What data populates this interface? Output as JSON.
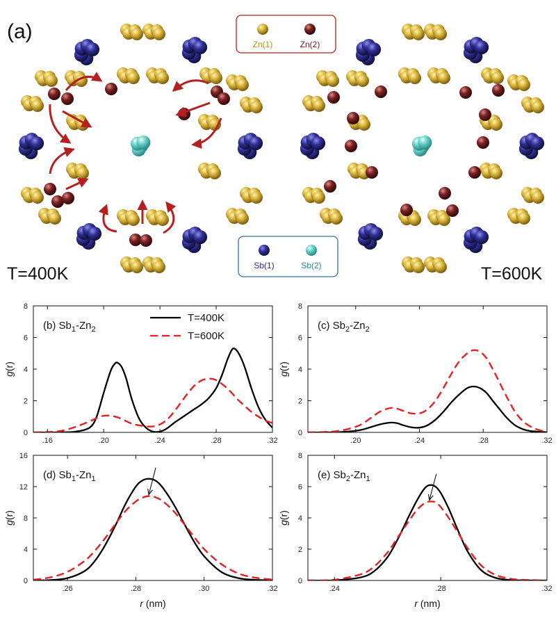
{
  "figure": {
    "panel_a_label": "(a)",
    "temp_left": "T=400K",
    "temp_right": "T=600K",
    "legend_zn": [
      {
        "label": "Zn(1)",
        "color": "#c9a72c"
      },
      {
        "label": "Zn(2)",
        "color": "#6b1a1a"
      }
    ],
    "legend_sb": [
      {
        "label": "Sb(1)",
        "color": "#2a2a8c"
      },
      {
        "label": "Sb(2)",
        "color": "#5fd0c8"
      }
    ],
    "arrow_color": "#b51f1f",
    "x_axis_label": {
      "italic": "r",
      "unit": " (nm)"
    },
    "y_axis_label": {
      "italic": "g",
      "rest": "(r)"
    }
  },
  "chart_data": [
    {
      "type": "line",
      "panel": "b",
      "title": {
        "label": "(b)",
        "sp1": "Sb",
        "sub1": "1",
        "dash": "-Zn",
        "sub2": "2"
      },
      "xlabel": "",
      "ylabel": "g(r)",
      "xlim": [
        0.15,
        0.32
      ],
      "ylim": [
        0,
        8
      ],
      "xticks": [
        0.16,
        0.2,
        0.24,
        0.28,
        0.32
      ],
      "xtick_labels": [
        ".16",
        ".20",
        ".24",
        ".28",
        ".32"
      ],
      "yticks": [
        0,
        2,
        4,
        6,
        8
      ],
      "legend": "top",
      "series": [
        {
          "name": "T=400K",
          "color": "#000000",
          "style": "solid",
          "x": [
            0.15,
            0.16,
            0.17,
            0.18,
            0.19,
            0.195,
            0.2,
            0.205,
            0.208,
            0.21,
            0.213,
            0.216,
            0.22,
            0.225,
            0.23,
            0.235,
            0.24,
            0.245,
            0.25,
            0.255,
            0.26,
            0.265,
            0.27,
            0.275,
            0.28,
            0.284,
            0.288,
            0.291,
            0.293,
            0.296,
            0.3,
            0.305,
            0.31,
            0.315,
            0.32
          ],
          "y": [
            0,
            0,
            0.01,
            0.05,
            0.3,
            1.0,
            2.5,
            3.9,
            4.35,
            4.4,
            4.1,
            3.4,
            2.1,
            0.9,
            0.3,
            0.05,
            0.05,
            0.25,
            0.6,
            0.9,
            1.2,
            1.5,
            1.8,
            2.2,
            2.8,
            3.6,
            4.6,
            5.2,
            5.3,
            5.0,
            4.2,
            2.8,
            1.6,
            0.8,
            0.3
          ]
        },
        {
          "name": "T=600K",
          "color": "#e22222",
          "style": "dashed",
          "x": [
            0.15,
            0.16,
            0.17,
            0.18,
            0.19,
            0.195,
            0.2,
            0.205,
            0.21,
            0.215,
            0.22,
            0.225,
            0.23,
            0.235,
            0.24,
            0.245,
            0.25,
            0.255,
            0.26,
            0.265,
            0.27,
            0.275,
            0.28,
            0.285,
            0.29,
            0.295,
            0.3,
            0.305,
            0.31,
            0.315,
            0.32
          ],
          "y": [
            0,
            0.02,
            0.1,
            0.35,
            0.7,
            0.9,
            1.05,
            1.05,
            0.95,
            0.75,
            0.55,
            0.45,
            0.38,
            0.38,
            0.5,
            0.8,
            1.3,
            1.9,
            2.5,
            3.0,
            3.3,
            3.4,
            3.3,
            3.0,
            2.6,
            2.1,
            1.7,
            1.3,
            1.0,
            0.75,
            0.6
          ]
        }
      ]
    },
    {
      "type": "line",
      "panel": "c",
      "title": {
        "label": "(c)",
        "sp1": "Sb",
        "sub1": "2",
        "dash": "-Zn",
        "sub2": "2"
      },
      "xlabel": "",
      "ylabel": "g(r)",
      "xlim": [
        0.17,
        0.32
      ],
      "ylim": [
        0,
        8
      ],
      "xticks": [
        0.2,
        0.24,
        0.28,
        0.32
      ],
      "xtick_labels": [
        ".20",
        ".24",
        ".28",
        ".32"
      ],
      "yticks": [
        0,
        2,
        4,
        6,
        8
      ],
      "series": [
        {
          "name": "T=400K",
          "color": "#000000",
          "style": "solid",
          "x": [
            0.17,
            0.18,
            0.19,
            0.2,
            0.205,
            0.21,
            0.215,
            0.22,
            0.223,
            0.226,
            0.23,
            0.235,
            0.24,
            0.245,
            0.25,
            0.255,
            0.26,
            0.265,
            0.27,
            0.274,
            0.278,
            0.282,
            0.286,
            0.29,
            0.295,
            0.3,
            0.305,
            0.31,
            0.32
          ],
          "y": [
            0,
            0,
            0.02,
            0.1,
            0.2,
            0.35,
            0.5,
            0.6,
            0.62,
            0.58,
            0.45,
            0.32,
            0.3,
            0.45,
            0.8,
            1.3,
            1.9,
            2.4,
            2.8,
            2.9,
            2.8,
            2.5,
            2.0,
            1.5,
            0.9,
            0.45,
            0.2,
            0.08,
            0.01
          ]
        },
        {
          "name": "T=600K",
          "color": "#e22222",
          "style": "dashed",
          "x": [
            0.17,
            0.18,
            0.19,
            0.2,
            0.205,
            0.21,
            0.215,
            0.22,
            0.223,
            0.226,
            0.23,
            0.235,
            0.24,
            0.245,
            0.25,
            0.255,
            0.26,
            0.265,
            0.27,
            0.274,
            0.278,
            0.282,
            0.286,
            0.29,
            0.295,
            0.3,
            0.305,
            0.31,
            0.315,
            0.32
          ],
          "y": [
            0,
            0.02,
            0.1,
            0.35,
            0.6,
            0.95,
            1.3,
            1.5,
            1.55,
            1.5,
            1.35,
            1.2,
            1.2,
            1.45,
            2.0,
            2.8,
            3.7,
            4.5,
            5.0,
            5.2,
            5.1,
            4.7,
            4.0,
            3.2,
            2.2,
            1.3,
            0.7,
            0.35,
            0.15,
            0.05
          ]
        }
      ]
    },
    {
      "type": "line",
      "panel": "d",
      "title": {
        "label": "(d)",
        "sp1": "Sb",
        "sub1": "1",
        "dash": "-Zn",
        "sub2": "1"
      },
      "xlabel": "r (nm)",
      "ylabel": "g(r)",
      "xlim": [
        0.25,
        0.32
      ],
      "ylim": [
        0,
        16
      ],
      "xticks": [
        0.26,
        0.28,
        0.3,
        0.32
      ],
      "xtick_labels": [
        ".26",
        ".28",
        ".30",
        ".32"
      ],
      "yticks": [
        0,
        4,
        8,
        12,
        16
      ],
      "annotation": "arrow from T=400K peak to T=600K peak",
      "series": [
        {
          "name": "T=400K",
          "color": "#000000",
          "style": "solid",
          "x": [
            0.25,
            0.255,
            0.26,
            0.265,
            0.268,
            0.271,
            0.274,
            0.277,
            0.28,
            0.282,
            0.284,
            0.286,
            0.288,
            0.291,
            0.294,
            0.297,
            0.3,
            0.305,
            0.31,
            0.315,
            0.32
          ],
          "y": [
            0,
            0.05,
            0.3,
            1.2,
            2.5,
            4.5,
            7.0,
            9.8,
            12.0,
            12.8,
            13.0,
            12.7,
            11.8,
            9.8,
            7.4,
            5.0,
            3.1,
            1.1,
            0.3,
            0.08,
            0.02
          ]
        },
        {
          "name": "T=600K",
          "color": "#e22222",
          "style": "dashed",
          "x": [
            0.25,
            0.255,
            0.26,
            0.265,
            0.268,
            0.271,
            0.274,
            0.277,
            0.28,
            0.282,
            0.284,
            0.286,
            0.288,
            0.291,
            0.294,
            0.297,
            0.3,
            0.305,
            0.31,
            0.315,
            0.32
          ],
          "y": [
            0.1,
            0.4,
            1.1,
            2.5,
            3.8,
            5.4,
            7.2,
            8.9,
            10.1,
            10.6,
            10.8,
            10.6,
            10.1,
            8.9,
            7.3,
            5.6,
            4.0,
            2.1,
            0.9,
            0.35,
            0.12
          ]
        }
      ]
    },
    {
      "type": "line",
      "panel": "e",
      "title": {
        "label": "(e)",
        "sp1": "Sb",
        "sub1": "2",
        "dash": "-Zn",
        "sub2": "1"
      },
      "xlabel": "r (nm)",
      "ylabel": "g(r)",
      "xlim": [
        0.23,
        0.32
      ],
      "ylim": [
        0,
        8
      ],
      "xticks": [
        0.24,
        0.28,
        0.32
      ],
      "xtick_labels": [
        ".24",
        ".28",
        ".32"
      ],
      "yticks": [
        0,
        2,
        4,
        6,
        8
      ],
      "annotation": "arrow from T=400K peak to T=600K peak",
      "series": [
        {
          "name": "T=400K",
          "color": "#000000",
          "style": "solid",
          "x": [
            0.23,
            0.24,
            0.25,
            0.255,
            0.26,
            0.264,
            0.268,
            0.271,
            0.274,
            0.276,
            0.278,
            0.28,
            0.283,
            0.286,
            0.29,
            0.295,
            0.3,
            0.305,
            0.31,
            0.32
          ],
          "y": [
            0,
            0.01,
            0.2,
            0.6,
            1.5,
            2.7,
            4.1,
            5.1,
            5.9,
            6.1,
            6.0,
            5.6,
            4.6,
            3.4,
            1.9,
            0.7,
            0.2,
            0.05,
            0.01,
            0
          ]
        },
        {
          "name": "T=600K",
          "color": "#e22222",
          "style": "dashed",
          "x": [
            0.23,
            0.24,
            0.25,
            0.255,
            0.26,
            0.264,
            0.268,
            0.271,
            0.274,
            0.276,
            0.278,
            0.28,
            0.283,
            0.286,
            0.29,
            0.295,
            0.3,
            0.305,
            0.31,
            0.32
          ],
          "y": [
            0,
            0.05,
            0.4,
            0.9,
            1.8,
            2.8,
            3.8,
            4.5,
            4.95,
            5.05,
            5.0,
            4.7,
            4.0,
            3.2,
            2.1,
            1.0,
            0.4,
            0.15,
            0.05,
            0
          ]
        }
      ]
    }
  ]
}
